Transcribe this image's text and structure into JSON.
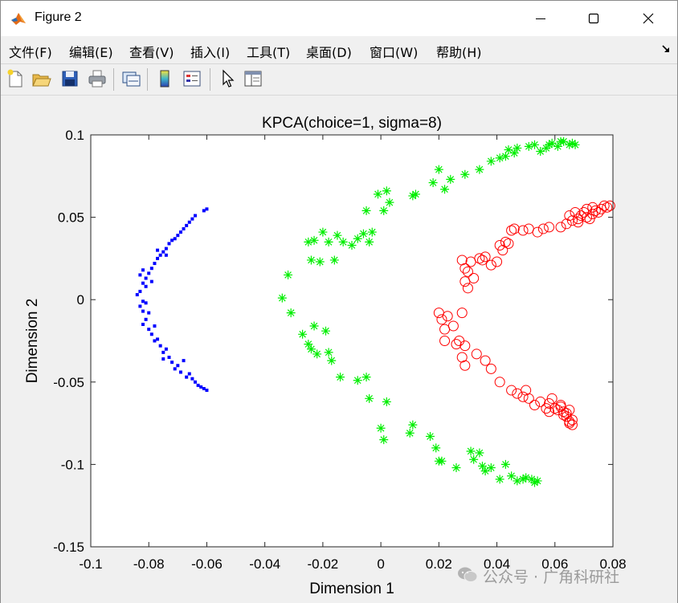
{
  "window": {
    "title": "Figure 2",
    "controls": {
      "minimize": "minimize",
      "maximize": "maximize",
      "close": "close"
    }
  },
  "menu": {
    "items": [
      "文件(F)",
      "编辑(E)",
      "查看(V)",
      "插入(I)",
      "工具(T)",
      "桌面(D)",
      "窗口(W)",
      "帮助(H)"
    ]
  },
  "toolbar": {
    "buttons": [
      "new-figure-icon",
      "open-file-icon",
      "save-icon",
      "print-icon",
      "link-plot-icon",
      "colorbar-icon",
      "legend-icon",
      "pointer-icon",
      "property-editor-icon"
    ]
  },
  "chart_data": {
    "type": "scatter",
    "title": "KPCA(choice=1, sigma=8)",
    "xlabel": "Dimension 1",
    "ylabel": "Dimension 2",
    "xlim": [
      -0.1,
      0.08
    ],
    "ylim": [
      -0.15,
      0.1
    ],
    "xticks": [
      "-0.1",
      "-0.08",
      "-0.06",
      "-0.04",
      "-0.02",
      "0",
      "0.02",
      "0.04",
      "0.06",
      "0.08"
    ],
    "yticks": [
      "-0.15",
      "-0.1",
      "-0.05",
      "0",
      "0.05",
      "0.1"
    ],
    "grid": false,
    "series": [
      {
        "marker": "dot",
        "color": "#0000ff",
        "points": [
          [
            -0.06,
            0.055
          ],
          [
            -0.061,
            0.054
          ],
          [
            -0.064,
            0.051
          ],
          [
            -0.065,
            0.049
          ],
          [
            -0.066,
            0.047
          ],
          [
            -0.067,
            0.045
          ],
          [
            -0.068,
            0.043
          ],
          [
            -0.069,
            0.041
          ],
          [
            -0.07,
            0.039
          ],
          [
            -0.071,
            0.037
          ],
          [
            -0.072,
            0.036
          ],
          [
            -0.073,
            0.034
          ],
          [
            -0.074,
            0.031
          ],
          [
            -0.075,
            0.029
          ],
          [
            -0.076,
            0.027
          ],
          [
            -0.077,
            0.025
          ],
          [
            -0.078,
            0.022
          ],
          [
            -0.079,
            0.019
          ],
          [
            -0.08,
            0.016
          ],
          [
            -0.081,
            0.013
          ],
          [
            -0.082,
            0.018
          ],
          [
            -0.083,
            0.015
          ],
          [
            -0.079,
            0.011
          ],
          [
            -0.082,
            0.01
          ],
          [
            -0.081,
            0.008
          ],
          [
            -0.083,
            0.005
          ],
          [
            -0.084,
            0.003
          ],
          [
            -0.082,
            -0.001
          ],
          [
            -0.083,
            -0.004
          ],
          [
            -0.081,
            -0.002
          ],
          [
            -0.082,
            -0.007
          ],
          [
            -0.08,
            -0.008
          ],
          [
            -0.081,
            -0.012
          ],
          [
            -0.082,
            -0.015
          ],
          [
            -0.08,
            -0.018
          ],
          [
            -0.078,
            -0.016
          ],
          [
            -0.079,
            -0.021
          ],
          [
            -0.077,
            -0.024
          ],
          [
            -0.076,
            -0.028
          ],
          [
            -0.074,
            -0.03
          ],
          [
            -0.075,
            -0.032
          ],
          [
            -0.073,
            -0.035
          ],
          [
            -0.072,
            -0.038
          ],
          [
            -0.07,
            -0.04
          ],
          [
            -0.071,
            -0.042
          ],
          [
            -0.069,
            -0.044
          ],
          [
            -0.067,
            -0.047
          ],
          [
            -0.065,
            -0.048
          ],
          [
            -0.064,
            -0.05
          ],
          [
            -0.063,
            -0.052
          ],
          [
            -0.062,
            -0.053
          ],
          [
            -0.061,
            -0.054
          ],
          [
            -0.06,
            -0.055
          ],
          [
            -0.077,
            0.03
          ],
          [
            -0.074,
            0.027
          ],
          [
            -0.078,
            -0.025
          ],
          [
            -0.075,
            -0.036
          ],
          [
            -0.068,
            -0.037
          ],
          [
            -0.066,
            -0.045
          ]
        ]
      },
      {
        "marker": "asterisk",
        "color": "#00ee00",
        "points": [
          [
            -0.034,
            0.001
          ],
          [
            -0.031,
            -0.008
          ],
          [
            -0.027,
            -0.021
          ],
          [
            -0.025,
            -0.027
          ],
          [
            -0.024,
            -0.03
          ],
          [
            -0.022,
            -0.033
          ],
          [
            -0.023,
            -0.016
          ],
          [
            -0.019,
            -0.019
          ],
          [
            -0.018,
            -0.032
          ],
          [
            -0.017,
            -0.037
          ],
          [
            -0.014,
            -0.047
          ],
          [
            -0.008,
            -0.049
          ],
          [
            -0.005,
            -0.047
          ],
          [
            -0.004,
            -0.06
          ],
          [
            0.002,
            -0.062
          ],
          [
            0.0,
            -0.078
          ],
          [
            0.001,
            -0.085
          ],
          [
            0.011,
            -0.076
          ],
          [
            0.01,
            -0.081
          ],
          [
            0.017,
            -0.083
          ],
          [
            0.019,
            -0.09
          ],
          [
            0.02,
            -0.098
          ],
          [
            0.021,
            -0.098
          ],
          [
            0.026,
            -0.102
          ],
          [
            0.031,
            -0.092
          ],
          [
            0.032,
            -0.097
          ],
          [
            0.034,
            -0.093
          ],
          [
            0.035,
            -0.101
          ],
          [
            0.036,
            -0.104
          ],
          [
            0.038,
            -0.102
          ],
          [
            0.041,
            -0.109
          ],
          [
            0.043,
            -0.1
          ],
          [
            0.045,
            -0.107
          ],
          [
            0.047,
            -0.11
          ],
          [
            0.049,
            -0.109
          ],
          [
            0.05,
            -0.108
          ],
          [
            0.052,
            -0.109
          ],
          [
            0.053,
            -0.111
          ],
          [
            0.054,
            -0.11
          ],
          [
            -0.032,
            0.015
          ],
          [
            -0.024,
            0.024
          ],
          [
            -0.021,
            0.023
          ],
          [
            -0.016,
            0.024
          ],
          [
            -0.025,
            0.035
          ],
          [
            -0.023,
            0.036
          ],
          [
            -0.02,
            0.041
          ],
          [
            -0.018,
            0.035
          ],
          [
            -0.015,
            0.039
          ],
          [
            -0.013,
            0.035
          ],
          [
            -0.01,
            0.033
          ],
          [
            -0.008,
            0.037
          ],
          [
            -0.006,
            0.04
          ],
          [
            -0.004,
            0.035
          ],
          [
            -0.003,
            0.041
          ],
          [
            -0.005,
            0.054
          ],
          [
            0.001,
            0.054
          ],
          [
            0.003,
            0.059
          ],
          [
            -0.001,
            0.064
          ],
          [
            0.002,
            0.066
          ],
          [
            0.011,
            0.063
          ],
          [
            0.012,
            0.064
          ],
          [
            0.018,
            0.071
          ],
          [
            0.02,
            0.079
          ],
          [
            0.022,
            0.067
          ],
          [
            0.024,
            0.073
          ],
          [
            0.029,
            0.076
          ],
          [
            0.034,
            0.079
          ],
          [
            0.038,
            0.084
          ],
          [
            0.041,
            0.086
          ],
          [
            0.043,
            0.087
          ],
          [
            0.044,
            0.091
          ],
          [
            0.046,
            0.089
          ],
          [
            0.047,
            0.092
          ],
          [
            0.051,
            0.093
          ],
          [
            0.053,
            0.094
          ],
          [
            0.055,
            0.09
          ],
          [
            0.057,
            0.092
          ],
          [
            0.059,
            0.095
          ],
          [
            0.061,
            0.093
          ],
          [
            0.063,
            0.096
          ],
          [
            0.065,
            0.094
          ],
          [
            0.066,
            0.095
          ],
          [
            0.067,
            0.094
          ],
          [
            0.062,
            0.096
          ],
          [
            0.058,
            0.094
          ]
        ]
      },
      {
        "marker": "circle",
        "color": "#ff0000",
        "points": [
          [
            0.02,
            -0.008
          ],
          [
            0.021,
            -0.012
          ],
          [
            0.022,
            -0.018
          ],
          [
            0.023,
            -0.01
          ],
          [
            0.025,
            -0.016
          ],
          [
            0.028,
            -0.008
          ],
          [
            0.022,
            -0.025
          ],
          [
            0.026,
            -0.027
          ],
          [
            0.027,
            -0.025
          ],
          [
            0.029,
            -0.028
          ],
          [
            0.028,
            -0.035
          ],
          [
            0.029,
            -0.04
          ],
          [
            0.033,
            -0.033
          ],
          [
            0.036,
            -0.037
          ],
          [
            0.038,
            -0.042
          ],
          [
            0.041,
            -0.05
          ],
          [
            0.045,
            -0.055
          ],
          [
            0.047,
            -0.057
          ],
          [
            0.049,
            -0.059
          ],
          [
            0.05,
            -0.055
          ],
          [
            0.051,
            -0.06
          ],
          [
            0.053,
            -0.064
          ],
          [
            0.055,
            -0.062
          ],
          [
            0.057,
            -0.066
          ],
          [
            0.058,
            -0.063
          ],
          [
            0.058,
            -0.068
          ],
          [
            0.059,
            -0.06
          ],
          [
            0.061,
            -0.067
          ],
          [
            0.062,
            -0.065
          ],
          [
            0.063,
            -0.068
          ],
          [
            0.064,
            -0.069
          ],
          [
            0.065,
            -0.067
          ],
          [
            0.064,
            -0.071
          ],
          [
            0.066,
            -0.073
          ],
          [
            0.065,
            -0.075
          ],
          [
            0.066,
            -0.076
          ],
          [
            0.065,
            -0.074
          ],
          [
            0.063,
            -0.07
          ],
          [
            0.062,
            -0.064
          ],
          [
            0.06,
            -0.066
          ],
          [
            0.028,
            0.024
          ],
          [
            0.029,
            0.019
          ],
          [
            0.03,
            0.017
          ],
          [
            0.029,
            0.011
          ],
          [
            0.03,
            0.007
          ],
          [
            0.032,
            0.013
          ],
          [
            0.031,
            0.023
          ],
          [
            0.034,
            0.025
          ],
          [
            0.035,
            0.024
          ],
          [
            0.036,
            0.026
          ],
          [
            0.038,
            0.021
          ],
          [
            0.04,
            0.023
          ],
          [
            0.041,
            0.033
          ],
          [
            0.042,
            0.03
          ],
          [
            0.043,
            0.035
          ],
          [
            0.044,
            0.034
          ],
          [
            0.045,
            0.042
          ],
          [
            0.046,
            0.043
          ],
          [
            0.049,
            0.042
          ],
          [
            0.051,
            0.043
          ],
          [
            0.054,
            0.041
          ],
          [
            0.056,
            0.043
          ],
          [
            0.058,
            0.044
          ],
          [
            0.062,
            0.044
          ],
          [
            0.064,
            0.046
          ],
          [
            0.066,
            0.048
          ],
          [
            0.068,
            0.049
          ],
          [
            0.069,
            0.051
          ],
          [
            0.07,
            0.053
          ],
          [
            0.071,
            0.05
          ],
          [
            0.073,
            0.052
          ],
          [
            0.074,
            0.054
          ],
          [
            0.075,
            0.053
          ],
          [
            0.076,
            0.055
          ],
          [
            0.077,
            0.057
          ],
          [
            0.078,
            0.056
          ],
          [
            0.079,
            0.057
          ],
          [
            0.073,
            0.056
          ],
          [
            0.071,
            0.055
          ],
          [
            0.067,
            0.053
          ],
          [
            0.065,
            0.051
          ],
          [
            0.068,
            0.047
          ],
          [
            0.072,
            0.049
          ]
        ]
      }
    ]
  },
  "watermark": {
    "text": "公众号 · 广角科研社",
    "icon": "wechat-icon"
  }
}
